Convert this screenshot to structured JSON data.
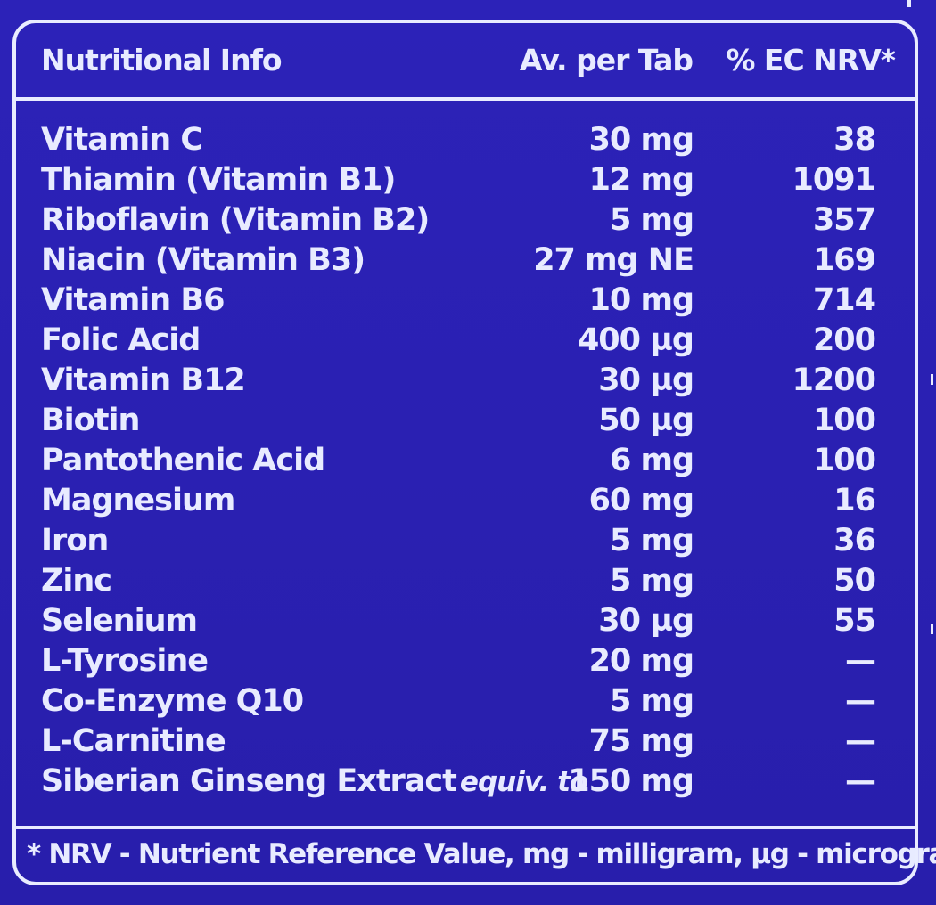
{
  "table": {
    "headers": {
      "nutrient": "Nutritional Info",
      "amount": "Av. per Tab",
      "nrv": "% EC NRV*"
    },
    "rows": [
      {
        "name": "Vitamin C",
        "qualifier": "",
        "amount": "30 mg",
        "nrv": "38"
      },
      {
        "name": "Thiamin (Vitamin B1)",
        "qualifier": "",
        "amount": "12 mg",
        "nrv": "1091"
      },
      {
        "name": "Riboflavin (Vitamin B2)",
        "qualifier": "",
        "amount": "5 mg",
        "nrv": "357"
      },
      {
        "name": "Niacin (Vitamin B3)",
        "qualifier": "",
        "amount": "27 mg NE",
        "nrv": "169"
      },
      {
        "name": "Vitamin B6",
        "qualifier": "",
        "amount": "10 mg",
        "nrv": "714"
      },
      {
        "name": "Folic Acid",
        "qualifier": "",
        "amount": "400 µg",
        "nrv": "200"
      },
      {
        "name": "Vitamin B12",
        "qualifier": "",
        "amount": "30 µg",
        "nrv": "1200"
      },
      {
        "name": "Biotin",
        "qualifier": "",
        "amount": "50 µg",
        "nrv": "100"
      },
      {
        "name": "Pantothenic Acid",
        "qualifier": "",
        "amount": "6 mg",
        "nrv": "100"
      },
      {
        "name": "Magnesium",
        "qualifier": "",
        "amount": "60 mg",
        "nrv": "16"
      },
      {
        "name": "Iron",
        "qualifier": "",
        "amount": "5 mg",
        "nrv": "36"
      },
      {
        "name": "Zinc",
        "qualifier": "",
        "amount": "5 mg",
        "nrv": "50"
      },
      {
        "name": "Selenium",
        "qualifier": "",
        "amount": "30 µg",
        "nrv": "55"
      },
      {
        "name": "L-Tyrosine",
        "qualifier": "",
        "amount": "20 mg",
        "nrv": "—"
      },
      {
        "name": "Co-Enzyme Q10",
        "qualifier": "",
        "amount": "5 mg",
        "nrv": "—"
      },
      {
        "name": "L-Carnitine",
        "qualifier": "",
        "amount": "75 mg",
        "nrv": "—"
      },
      {
        "name": "Siberian Ginseng Extract",
        "qualifier": "equiv. to",
        "amount": "150 mg",
        "nrv": "—"
      }
    ]
  },
  "footnote": "* NRV - Nutrient Reference Value, mg - milligram,  µg - microgram",
  "colors": {
    "background": "#2a1fb0",
    "text": "#e8ebff"
  }
}
